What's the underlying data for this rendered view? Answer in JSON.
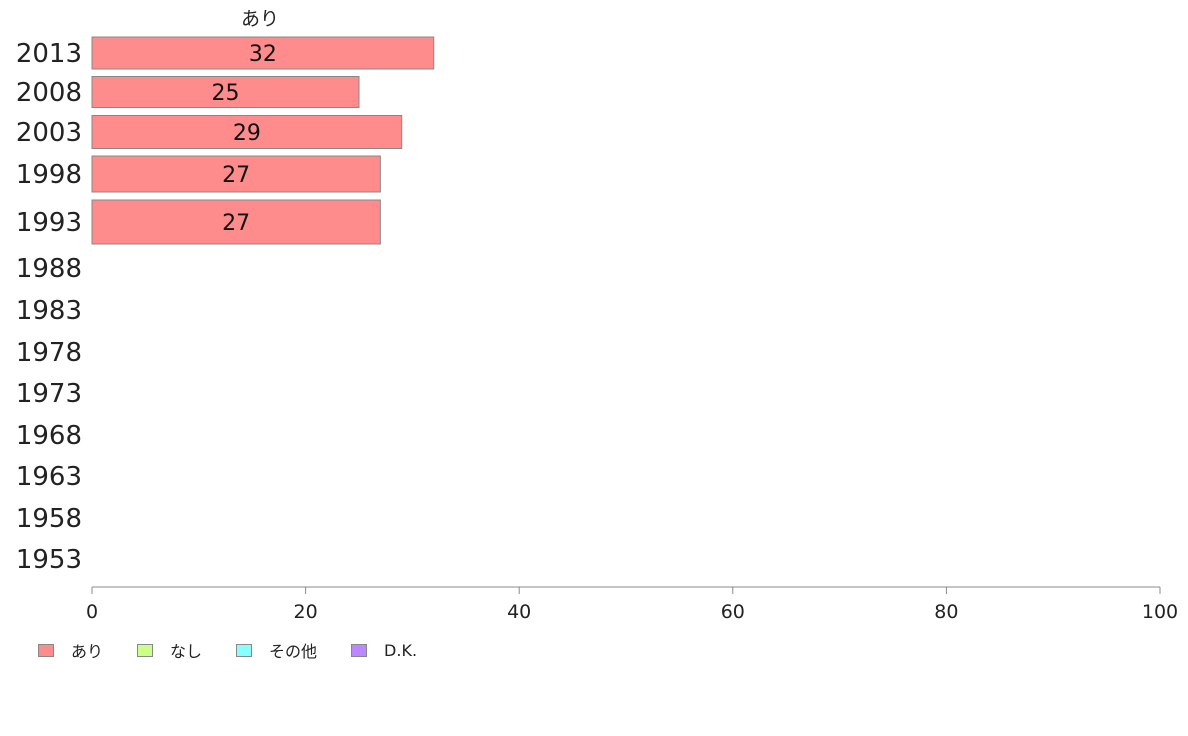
{
  "chart_data": {
    "type": "bar",
    "orientation": "horizontal",
    "categories": [
      "2013",
      "2008",
      "2003",
      "1998",
      "1993",
      "1988",
      "1983",
      "1978",
      "1973",
      "1968",
      "1963",
      "1958",
      "1953"
    ],
    "series": [
      {
        "name": "あり",
        "color": "#ff8c8c",
        "values": [
          32,
          25,
          29,
          27,
          27,
          null,
          null,
          null,
          null,
          null,
          null,
          null,
          null
        ],
        "data_labels": [
          "32",
          "25",
          "29",
          "27",
          "27"
        ]
      }
    ],
    "series_header": "あり",
    "xlim": [
      0,
      100
    ],
    "xticks": [
      0,
      20,
      40,
      60,
      80,
      100
    ],
    "xtick_labels": [
      "0",
      "20",
      "40",
      "60",
      "80",
      "100"
    ],
    "grid": false,
    "legend_position": "bottom-left",
    "legend": [
      {
        "label": "あり",
        "color": "#ff8c8c"
      },
      {
        "label": "なし",
        "color": "#ccff88"
      },
      {
        "label": "その他",
        "color": "#88ffff"
      },
      {
        "label": "D.K.",
        "color": "#bb88ff"
      }
    ]
  }
}
